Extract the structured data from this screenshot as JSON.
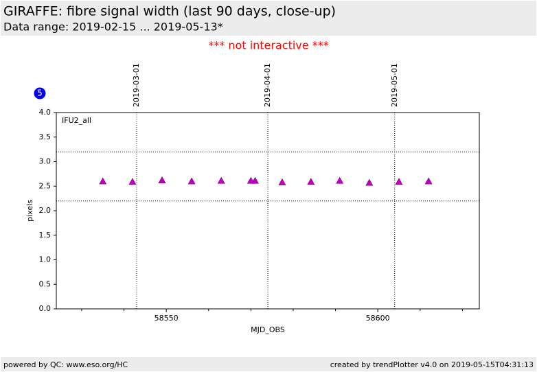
{
  "header": {
    "title": "GIRAFFE: fibre signal width (last 90 days, close-up)",
    "subtitle": "Data range: 2019-02-15 ... 2019-05-13*",
    "notice": "*** not interactive ***"
  },
  "chart_data": {
    "type": "scatter",
    "badge": "5",
    "panel_label": "IFU2_all",
    "x_label": "MJD_OBS",
    "y_label": "pixels",
    "x": [
      58535,
      58542,
      58549,
      58556,
      58563,
      58570,
      58571,
      58577.4,
      58584.2,
      58591,
      58598,
      58605,
      58612
    ],
    "values": [
      2.6,
      2.59,
      2.62,
      2.6,
      2.61,
      2.61,
      2.61,
      2.58,
      2.59,
      2.61,
      2.57,
      2.59,
      2.6
    ],
    "color": "#c000c0",
    "marker": "triangle",
    "xlim": [
      58524,
      58624
    ],
    "xticks": [
      58550,
      58600
    ],
    "xticks_minor": [
      58530,
      58540,
      58560,
      58570,
      58580,
      58590,
      58610,
      58620
    ],
    "ylim": [
      0,
      4
    ],
    "yticks": [
      {
        "value": 0,
        "label": "0.0"
      },
      0.5,
      {
        "value": 1,
        "label": "1.0"
      },
      1.5,
      {
        "value": 2,
        "label": "2.0"
      },
      2.5,
      {
        "value": 3,
        "label": "3.0"
      },
      3.5,
      {
        "value": 4,
        "label": "4.0"
      }
    ],
    "hlines": [
      3.2,
      2.2
    ],
    "date_markers": [
      {
        "value": 58543,
        "label": "2019-03-01"
      },
      {
        "value": 58574,
        "label": "2019-04-01"
      },
      {
        "value": 58604,
        "label": "2019-05-01"
      }
    ]
  },
  "footer": {
    "left": "powered by QC: www.eso.org/HC",
    "right": "created by trendPlotter v4.0 on 2019-05-15T04:31:13"
  }
}
